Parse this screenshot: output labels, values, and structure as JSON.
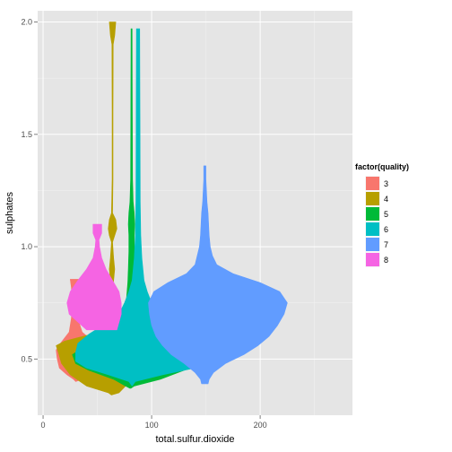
{
  "chart_data": {
    "type": "violin",
    "xlabel": "total.sulfur.dioxide",
    "ylabel": "sulphates",
    "xlim": [
      -5,
      285
    ],
    "ylim": [
      0.25,
      2.05
    ],
    "x_ticks": [
      0,
      100,
      200
    ],
    "y_ticks": [
      0.5,
      1.0,
      1.5,
      2.0
    ],
    "x_tick_labels": [
      "0",
      "100",
      "200"
    ],
    "y_tick_labels": [
      "0.5",
      "1.0",
      "1.5",
      "2.0"
    ],
    "grid": true,
    "legend": {
      "title": "factor(quality)",
      "position": "right"
    },
    "series": [
      {
        "name": "3",
        "color": "#F8766D",
        "profile": [
          [
            0.4,
            30,
            30
          ],
          [
            0.41,
            28,
            36
          ],
          [
            0.43,
            22,
            46
          ],
          [
            0.46,
            15,
            58
          ],
          [
            0.5,
            13,
            66
          ],
          [
            0.54,
            12,
            62
          ],
          [
            0.57,
            16,
            48
          ],
          [
            0.62,
            24,
            36
          ],
          [
            0.68,
            26,
            32
          ],
          [
            0.75,
            27,
            31
          ],
          [
            0.82,
            26,
            33
          ],
          [
            0.855,
            25,
            33
          ]
        ]
      },
      {
        "name": "4",
        "color": "#B79F00",
        "profile": [
          [
            0.34,
            63,
            63
          ],
          [
            0.35,
            60,
            70
          ],
          [
            0.38,
            40,
            76
          ],
          [
            0.43,
            25,
            74
          ],
          [
            0.48,
            17,
            70
          ],
          [
            0.53,
            14,
            66
          ],
          [
            0.56,
            12,
            66
          ],
          [
            0.58,
            20,
            67
          ],
          [
            0.62,
            52,
            67
          ],
          [
            0.66,
            60,
            66
          ],
          [
            0.7,
            62,
            65
          ],
          [
            0.78,
            62,
            65
          ],
          [
            0.85,
            62,
            65
          ],
          [
            0.9,
            61,
            66
          ],
          [
            0.95,
            62,
            65
          ],
          [
            1.02,
            63,
            64
          ],
          [
            1.05,
            61,
            66
          ],
          [
            1.08,
            60,
            68
          ],
          [
            1.12,
            61,
            67
          ],
          [
            1.15,
            63,
            64
          ],
          [
            1.3,
            63.6,
            64.4
          ],
          [
            1.6,
            63.6,
            64.4
          ],
          [
            1.9,
            63.4,
            64.6
          ],
          [
            1.94,
            62,
            66
          ],
          [
            2.0,
            61,
            67
          ]
        ]
      },
      {
        "name": "5",
        "color": "#00BA38",
        "profile": [
          [
            0.37,
            80,
            81
          ],
          [
            0.38,
            76,
            84
          ],
          [
            0.41,
            65,
            108
          ],
          [
            0.45,
            42,
            130
          ],
          [
            0.48,
            30,
            146
          ],
          [
            0.52,
            27,
            150
          ],
          [
            0.56,
            40,
            145
          ],
          [
            0.6,
            62,
            128
          ],
          [
            0.64,
            70,
            110
          ],
          [
            0.68,
            74,
            98
          ],
          [
            0.72,
            76,
            92
          ],
          [
            0.78,
            77,
            89
          ],
          [
            0.84,
            78,
            87
          ],
          [
            0.9,
            78.5,
            85.5
          ],
          [
            0.98,
            79,
            84
          ],
          [
            1.05,
            79,
            84
          ],
          [
            1.1,
            78.5,
            84.5
          ],
          [
            1.15,
            79,
            84
          ],
          [
            1.2,
            80,
            83
          ],
          [
            1.3,
            80.6,
            82.4
          ],
          [
            1.6,
            80.8,
            82.2
          ],
          [
            1.97,
            81,
            82
          ]
        ]
      },
      {
        "name": "6",
        "color": "#00BFC4",
        "profile": [
          [
            0.38,
            82,
            82
          ],
          [
            0.4,
            79,
            85
          ],
          [
            0.43,
            60,
            110
          ],
          [
            0.46,
            40,
            140
          ],
          [
            0.49,
            30,
            160
          ],
          [
            0.53,
            30,
            165
          ],
          [
            0.57,
            32,
            160
          ],
          [
            0.61,
            42,
            140
          ],
          [
            0.65,
            55,
            120
          ],
          [
            0.7,
            70,
            105
          ],
          [
            0.75,
            75,
            100
          ],
          [
            0.8,
            79,
            96
          ],
          [
            0.85,
            82,
            93
          ],
          [
            0.9,
            83,
            92
          ],
          [
            0.95,
            84,
            91
          ],
          [
            1.0,
            84.5,
            90.5
          ],
          [
            1.05,
            85,
            90
          ],
          [
            1.2,
            85.5,
            89.5
          ],
          [
            1.5,
            85.7,
            89.3
          ],
          [
            1.97,
            86,
            89
          ]
        ]
      },
      {
        "name": "7",
        "color": "#619CFF",
        "profile": [
          [
            0.39,
            146,
            152
          ],
          [
            0.41,
            145,
            153
          ],
          [
            0.44,
            140,
            157
          ],
          [
            0.48,
            130,
            168
          ],
          [
            0.52,
            118,
            185
          ],
          [
            0.56,
            110,
            198
          ],
          [
            0.6,
            104,
            208
          ],
          [
            0.65,
            100,
            216
          ],
          [
            0.7,
            98,
            222
          ],
          [
            0.75,
            97,
            225
          ],
          [
            0.8,
            102,
            218
          ],
          [
            0.84,
            115,
            200
          ],
          [
            0.88,
            132,
            175
          ],
          [
            0.92,
            140,
            160
          ],
          [
            0.96,
            142,
            156
          ],
          [
            1.0,
            144,
            154
          ],
          [
            1.05,
            145,
            153
          ],
          [
            1.1,
            145.5,
            152.5
          ],
          [
            1.15,
            146,
            152
          ],
          [
            1.2,
            147,
            151
          ],
          [
            1.25,
            147.5,
            150.5
          ],
          [
            1.3,
            148,
            150
          ],
          [
            1.36,
            148,
            150
          ]
        ]
      },
      {
        "name": "8",
        "color": "#F564E3",
        "profile": [
          [
            0.63,
            40,
            68
          ],
          [
            0.7,
            24,
            72
          ],
          [
            0.75,
            22,
            72
          ],
          [
            0.8,
            25,
            70
          ],
          [
            0.85,
            32,
            64
          ],
          [
            0.9,
            40,
            58
          ],
          [
            0.95,
            46,
            54
          ],
          [
            1.0,
            48,
            52
          ],
          [
            1.03,
            48.5,
            51.5
          ],
          [
            1.06,
            46,
            54
          ],
          [
            1.1,
            46,
            54
          ]
        ]
      }
    ]
  }
}
